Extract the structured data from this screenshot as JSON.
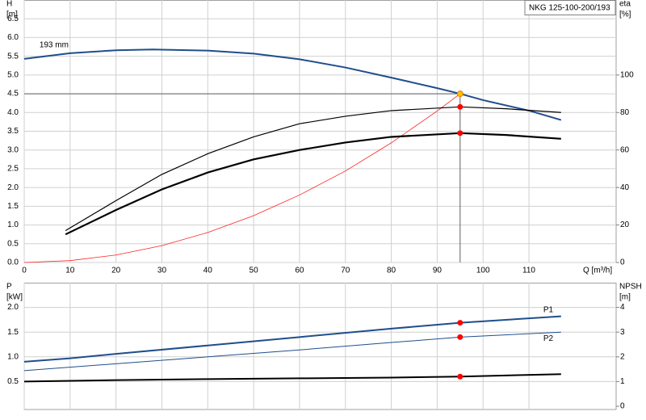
{
  "chart_data": [
    {
      "type": "line",
      "title": "NKG 125-100-200/193",
      "xlabel": "Q [m³/h]",
      "ylabel": "H",
      "yunit": "[m]",
      "y2label": "eta",
      "y2unit": "[%]",
      "xlim": [
        0,
        129
      ],
      "xticks": [
        0,
        10,
        20,
        30,
        40,
        50,
        60,
        70,
        80,
        90,
        100,
        110
      ],
      "ylim": [
        0,
        7
      ],
      "yticks": [
        {
          "value": 0,
          "label": "0.0"
        },
        0.5,
        {
          "value": 1,
          "label": "1.0"
        },
        1.5,
        {
          "value": 2,
          "label": "2.0"
        },
        2.5,
        {
          "value": 3,
          "label": "3.0"
        },
        3.5,
        {
          "value": 4,
          "label": "4.0"
        },
        4.5,
        {
          "value": 5,
          "label": "5.0"
        },
        5.5,
        {
          "value": 6,
          "label": "6.0"
        },
        6.5
      ],
      "y2lim": [
        0,
        140
      ],
      "y2ticks": [
        0,
        20,
        40,
        60,
        80,
        100
      ],
      "grid": true,
      "duty_point": {
        "x": 95,
        "y": 4.5,
        "color": "#ffc000"
      },
      "series": [
        {
          "name": "193 mm",
          "color": "#1f4e8c",
          "line_width": 2,
          "x": [
            0,
            10,
            20,
            28,
            40,
            50,
            60,
            70,
            80,
            90,
            95,
            100,
            110,
            117
          ],
          "values": [
            5.43,
            5.58,
            5.66,
            5.68,
            5.65,
            5.57,
            5.42,
            5.2,
            4.93,
            4.65,
            4.5,
            4.33,
            4.05,
            3.8
          ]
        },
        {
          "color": "#ff2020",
          "line_width": 0.8,
          "x": [
            0,
            10,
            20,
            30,
            40,
            50,
            60,
            70,
            80,
            90,
            95
          ],
          "values": [
            0,
            0.05,
            0.2,
            0.45,
            0.8,
            1.25,
            1.8,
            2.44,
            3.19,
            4.04,
            4.5
          ]
        },
        {
          "color": "#000000",
          "line_width": 1.2,
          "axis": "y2",
          "marker_color": "#ff0000",
          "x": [
            9,
            20,
            30,
            40,
            50,
            60,
            70,
            80,
            95,
            105,
            117
          ],
          "values": [
            17,
            33,
            47,
            58,
            67,
            74,
            78,
            81,
            83,
            82,
            80
          ]
        },
        {
          "color": "#000000",
          "line_width": 2.2,
          "axis": "y2",
          "marker_color": "#ff0000",
          "x": [
            9,
            20,
            30,
            40,
            50,
            60,
            70,
            80,
            95,
            105,
            117
          ],
          "values": [
            15,
            28,
            39,
            48,
            55,
            60,
            64,
            67,
            69,
            68,
            66
          ]
        }
      ]
    },
    {
      "type": "line",
      "ylabel": "P",
      "yunit": "[kW]",
      "y2label": "NPSH",
      "y2unit": "[m]",
      "xlim": [
        0,
        129
      ],
      "ylim": [
        0,
        2.5
      ],
      "yticks": [
        0.5,
        {
          "value": 1,
          "label": "1.0"
        },
        1.5,
        {
          "value": 2,
          "label": "2.0"
        }
      ],
      "y2lim": [
        0,
        5
      ],
      "y2ticks": [
        0,
        1,
        2,
        3,
        4
      ],
      "grid": true,
      "series": [
        {
          "name": "P1",
          "color": "#1f4e8c",
          "line_width": 2,
          "marker_color": "#ff0000",
          "x": [
            0,
            10,
            20,
            40,
            60,
            80,
            95,
            117
          ],
          "values": [
            0.9,
            0.97,
            1.06,
            1.23,
            1.4,
            1.57,
            1.69,
            1.82
          ]
        },
        {
          "name": "P2",
          "color": "#1f4e8c",
          "line_width": 1,
          "marker_color": "#ff0000",
          "x": [
            0,
            20,
            40,
            60,
            80,
            95,
            117
          ],
          "values": [
            0.72,
            0.86,
            1.0,
            1.14,
            1.29,
            1.4,
            1.5
          ]
        },
        {
          "color": "#000000",
          "line_width": 2,
          "axis": "y2",
          "marker_color": "#ff0000",
          "x": [
            0,
            20,
            40,
            60,
            80,
            95,
            117
          ],
          "values": [
            1.0,
            1.06,
            1.1,
            1.13,
            1.16,
            1.2,
            1.3
          ]
        }
      ]
    }
  ]
}
